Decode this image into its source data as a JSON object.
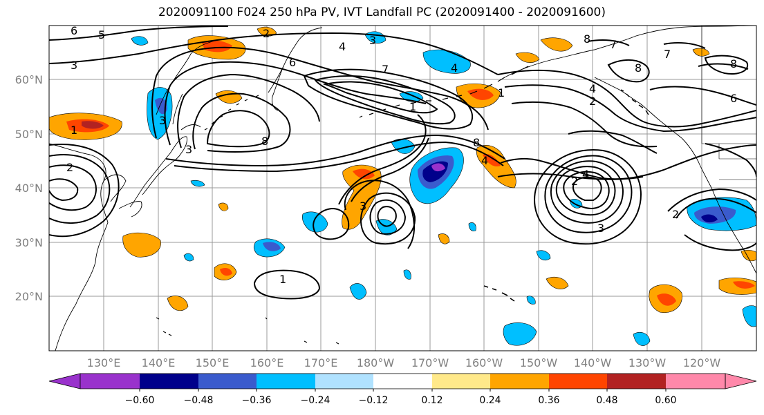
{
  "title": "2020091100 F024 250 hPa PV, IVT Landfall PC (2020091400 - 2020091600)",
  "map": {
    "projection": "PlateCarree",
    "lon_range": [
      120,
      -110
    ],
    "lat_range": [
      10,
      70
    ],
    "latitude_labels": [
      "20°N",
      "30°N",
      "40°N",
      "50°N",
      "60°N"
    ],
    "longitude_labels": [
      "130°E",
      "140°E",
      "150°E",
      "160°E",
      "170°E",
      "180°W",
      "170°W",
      "160°W",
      "150°W",
      "140°W",
      "130°W",
      "120°W"
    ],
    "gridlines": true,
    "grid_color": "#999999",
    "coast_color": "#000000",
    "contour_color": "#000000"
  },
  "colorbar": {
    "colors": [
      "#9932cc",
      "#00008b",
      "#3a5bcd",
      "#00bfff",
      "#b0e2ff",
      "#ffffff",
      "#ffe98a",
      "#ffa500",
      "#ff4500",
      "#b22222",
      "#ff88aa"
    ],
    "tick_labels": [
      "−0.60",
      "−0.48",
      "−0.36",
      "−0.24",
      "−0.12",
      "0.12",
      "0.24",
      "0.36",
      "0.48",
      "0.60"
    ],
    "extend": "both"
  },
  "contour_labels": [
    "6",
    "5",
    "4",
    "2",
    "3",
    "3",
    "4",
    "6",
    "7",
    "8",
    "8",
    "7",
    "7",
    "8",
    "8",
    "4",
    "2",
    "6",
    "3",
    "1",
    "1",
    "3",
    "2",
    "8",
    "4",
    "2",
    "4",
    "3",
    "3",
    "2",
    "1",
    "1"
  ]
}
